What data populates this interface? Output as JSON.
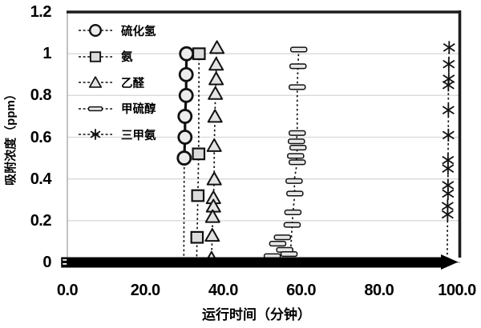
{
  "chart_data": {
    "type": "scatter",
    "title": "",
    "xlabel": "运行时间（分钟）",
    "ylabel": "吸附浓度（ppm）",
    "xlim": [
      0,
      100
    ],
    "ylim": [
      0,
      1.2
    ],
    "grid": "horizontal",
    "legend_position": "top-left-inside",
    "x_ticks": [
      {
        "label": "0.0",
        "value": 0
      },
      {
        "label": "20.0",
        "value": 20
      },
      {
        "label": "40.0",
        "value": 40
      },
      {
        "label": "60.0",
        "value": 60
      },
      {
        "label": "80.0",
        "value": 80
      },
      {
        "label": "100.0",
        "value": 100
      }
    ],
    "y_ticks": [
      {
        "label": "0",
        "value": 0
      },
      {
        "label": "0.2",
        "value": 0.2
      },
      {
        "label": "0.4",
        "value": 0.4
      },
      {
        "label": "0.6",
        "value": 0.6
      },
      {
        "label": "0.8",
        "value": 0.8
      },
      {
        "label": "1",
        "value": 1
      },
      {
        "label": "1.2",
        "value": 1.2
      }
    ],
    "series": [
      {
        "name": "硫化氢",
        "marker": "circle",
        "line": "solid",
        "points": [
          [
            30.6,
            1.0
          ],
          [
            30.5,
            0.9
          ],
          [
            30.5,
            0.8
          ],
          [
            30.2,
            0.7
          ],
          [
            30.2,
            0.6
          ],
          [
            30.0,
            0.5
          ]
        ],
        "drop_x": 29.9
      },
      {
        "name": "氨",
        "marker": "square",
        "line": "dashed",
        "points": [
          [
            33.8,
            1.0
          ],
          [
            33.7,
            0.52
          ],
          [
            33.5,
            0.32
          ],
          [
            33.3,
            0.12
          ]
        ],
        "drop_x": 33.2
      },
      {
        "name": "乙醛",
        "marker": "triangle",
        "line": "dashed",
        "points": [
          [
            38.4,
            1.03
          ],
          [
            38.2,
            0.95
          ],
          [
            38.2,
            0.88
          ],
          [
            38.0,
            0.81
          ],
          [
            37.9,
            0.7
          ],
          [
            37.7,
            0.56
          ],
          [
            37.7,
            0.4
          ],
          [
            37.5,
            0.31
          ],
          [
            37.5,
            0.27
          ],
          [
            37.3,
            0.22
          ],
          [
            37.2,
            0.13
          ],
          [
            37.0,
            0.02
          ]
        ],
        "drop_x": 37.0
      },
      {
        "name": "甲硫醇",
        "marker": "hbar",
        "line": "dashed",
        "connect_above": 0.14,
        "points": [
          [
            59.4,
            1.02
          ],
          [
            59.2,
            0.94
          ],
          [
            59.0,
            0.84
          ],
          [
            59.0,
            0.62
          ],
          [
            58.8,
            0.58
          ],
          [
            59.2,
            0.55
          ],
          [
            58.6,
            0.51
          ],
          [
            59.0,
            0.48
          ],
          [
            58.2,
            0.39
          ],
          [
            58.4,
            0.33
          ],
          [
            57.9,
            0.24
          ],
          [
            57.7,
            0.18
          ],
          [
            55.2,
            0.12
          ],
          [
            54.0,
            0.09
          ],
          [
            55.8,
            0.06
          ],
          [
            56.9,
            0.04
          ],
          [
            52.6,
            0.03
          ]
        ],
        "drop_x": 57.2
      },
      {
        "name": "三甲氨",
        "marker": "asterisk",
        "line": "dashed",
        "points": [
          [
            98.0,
            1.03
          ],
          [
            97.9,
            0.95
          ],
          [
            97.9,
            0.88
          ],
          [
            97.8,
            0.85
          ],
          [
            97.8,
            0.73
          ],
          [
            97.8,
            0.61
          ],
          [
            97.7,
            0.49
          ],
          [
            97.7,
            0.45
          ],
          [
            97.7,
            0.37
          ],
          [
            97.7,
            0.33
          ],
          [
            97.6,
            0.27
          ],
          [
            97.6,
            0.23
          ]
        ],
        "drop_x": 97.5
      }
    ],
    "zero_baseline_band": {
      "note": "all gases overlap at 0 ppm forming a thick black band",
      "y": 0,
      "x_start": -1.6,
      "x_end": 96.3,
      "arrow_tip_x": 100.3
    }
  },
  "colors": {
    "background": "#ffffff",
    "grid": "#d9d9d9",
    "border_dark": "#1c1c1c",
    "border_light": "#9a9a9a",
    "marker_fill": "#e3e3e3",
    "line": "#111111",
    "band": "#000000",
    "text": "#000000"
  }
}
